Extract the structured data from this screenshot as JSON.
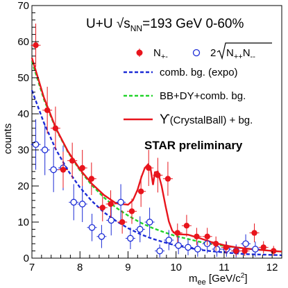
{
  "chart_data": {
    "type": "scatter",
    "title": "U+U √s",
    "title_sub": "NN",
    "title_rest": "=193 GeV 0-60%",
    "annotation": "STAR preliminary",
    "xlabel_main": "m",
    "xlabel_sub": "ee",
    "xlabel_rest": " [GeV/c",
    "xlabel_sup": "2",
    "xlabel_end": "]",
    "ylabel": "counts",
    "xlim": [
      7.0,
      12.2
    ],
    "ylim": [
      0,
      70
    ],
    "x_ticks": [
      "7",
      "8",
      "9",
      "10",
      "11",
      "12"
    ],
    "y_ticks": [
      "0",
      "10",
      "20",
      "30",
      "40",
      "50",
      "60",
      "70"
    ],
    "legend": {
      "placement": "top-right",
      "entries": {
        "unlike": {
          "main": "N",
          "sub": "+-"
        },
        "like": {
          "pre": "2",
          "main": "N",
          "sub1": "++",
          "main2": "N",
          "sub2": "--"
        },
        "comb": "comb. bg. (expo)",
        "bbdy": "BB+DY+comb. bg.",
        "upsilon": {
          "symbol": "ϒ",
          "rest": "(CrystalBall) + bg."
        }
      }
    },
    "colors": {
      "unlike": "#e8141c",
      "like": "#1b2bd6",
      "comb": "#1b2bd6",
      "bbdy": "#22d32a",
      "upsilon": "#e8141c"
    },
    "series": [
      {
        "kind": "unlike",
        "x": [
          7.08,
          7.32,
          7.49,
          7.65,
          7.84,
          8.05,
          8.24,
          8.47,
          8.64,
          8.88,
          9.08,
          9.27,
          9.43,
          9.62,
          9.83,
          10.03,
          10.22,
          10.43,
          10.65,
          10.83,
          11.04,
          11.25,
          11.43,
          11.63,
          11.82,
          12.03
        ],
        "y": [
          59,
          41,
          36,
          24.5,
          27,
          25,
          22,
          14,
          15,
          10,
          13,
          18.5,
          25,
          23,
          22,
          7,
          9,
          6,
          6,
          4,
          3,
          2,
          2,
          7,
          3,
          2
        ],
        "err": [
          6,
          6.5,
          6,
          5,
          5,
          5,
          4.5,
          3.8,
          3.8,
          3.2,
          3.5,
          4.3,
          5,
          4.8,
          4.7,
          2.6,
          3,
          2.4,
          2.4,
          2,
          1.7,
          1.4,
          1.4,
          2.6,
          1.7,
          1.4
        ]
      },
      {
        "kind": "like",
        "x": [
          7.08,
          7.27,
          7.45,
          7.65,
          7.87,
          8.05,
          8.25,
          8.45,
          8.65,
          8.85,
          9.05,
          9.25,
          9.45,
          9.66,
          9.85,
          10.05,
          10.25,
          10.45,
          10.65,
          10.85,
          11.05,
          11.25,
          11.45,
          11.65
        ],
        "y": [
          31.5,
          30,
          24.5,
          25,
          15.5,
          15,
          8.5,
          6,
          10.5,
          15.5,
          5.5,
          8,
          10,
          2,
          5,
          3.5,
          3,
          2.5,
          4,
          2.5,
          2.5,
          2,
          4,
          2.5
        ],
        "err": [
          7,
          7,
          6.2,
          6.2,
          5,
          5,
          3.8,
          3.2,
          4.2,
          5,
          3,
          3.6,
          4,
          1.8,
          2.8,
          2.4,
          2.2,
          2.1,
          2.6,
          2.1,
          2.1,
          1.8,
          2.6,
          2.1
        ]
      }
    ],
    "curves": {
      "comb": {
        "x": [
          7.0,
          7.25,
          7.5,
          7.75,
          8.0,
          8.25,
          8.5,
          8.75,
          9.0,
          9.25,
          9.5,
          9.75,
          10.0,
          10.25,
          10.5,
          10.75,
          11.0,
          11.25,
          11.5,
          11.75,
          12.0,
          12.2
        ],
        "y": [
          46.5,
          37.5,
          30.1,
          24.3,
          19.6,
          15.8,
          12.7,
          10.3,
          8.3,
          6.7,
          5.4,
          4.4,
          3.5,
          2.9,
          2.3,
          1.9,
          1.6,
          1.3,
          1.1,
          1.0,
          0.9,
          0.8
        ]
      },
      "bbdy": {
        "x": [
          7.0,
          7.25,
          7.5,
          7.75,
          8.0,
          8.25,
          8.5,
          8.75,
          9.0,
          9.25,
          9.5,
          9.75,
          10.0,
          10.25,
          10.5,
          10.75,
          11.0,
          11.25,
          11.5,
          11.75,
          12.0,
          12.2
        ],
        "y": [
          54.5,
          44.0,
          35.8,
          29.4,
          24.3,
          20.2,
          16.8,
          14.0,
          11.8,
          9.9,
          8.4,
          7.2,
          6.1,
          5.3,
          4.5,
          3.9,
          3.4,
          3.0,
          2.6,
          2.3,
          2.0,
          1.8
        ]
      },
      "upsilon": {
        "x": [
          7.0,
          7.25,
          7.5,
          7.75,
          8.0,
          8.25,
          8.5,
          8.75,
          9.0,
          9.1,
          9.2,
          9.28,
          9.35,
          9.42,
          9.47,
          9.52,
          9.56,
          9.62,
          9.7,
          9.78,
          9.85,
          9.92,
          10.0,
          10.1,
          10.25,
          10.5,
          10.75,
          11.0,
          11.25,
          11.5,
          11.75,
          12.0,
          12.2
        ],
        "y": [
          55.5,
          44.5,
          36.0,
          29.6,
          24.6,
          20.6,
          17.5,
          15.2,
          14.8,
          16.0,
          19.0,
          22.5,
          25.0,
          26.0,
          24.8,
          20.3,
          23.8,
          24.0,
          20.0,
          14.5,
          10.2,
          7.6,
          6.6,
          6.6,
          6.5,
          5.5,
          4.4,
          3.6,
          3.0,
          2.6,
          2.3,
          2.0,
          1.8
        ]
      }
    }
  }
}
